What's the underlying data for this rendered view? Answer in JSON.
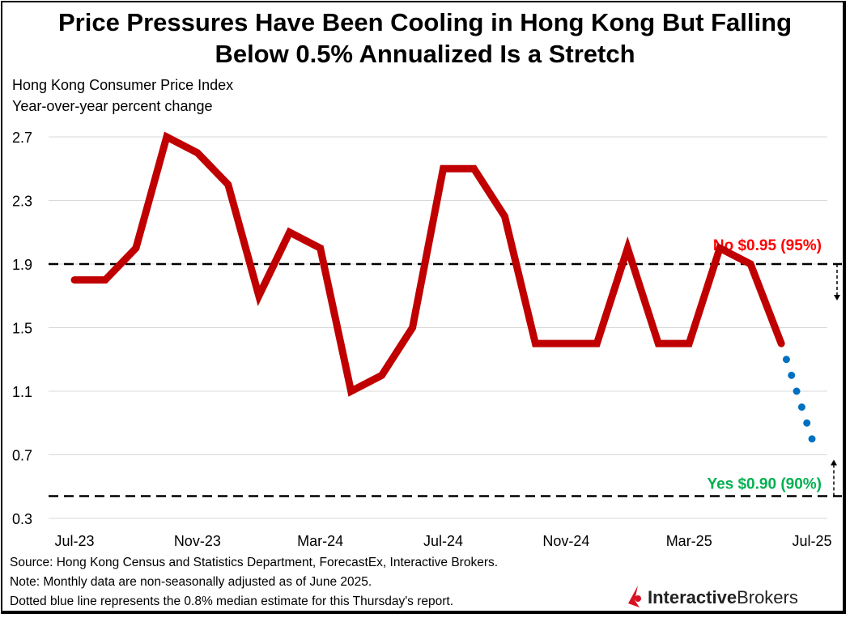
{
  "title_line1": "Price Pressures Have Been Cooling in Hong Kong But Falling",
  "title_line2": "Below 0.5% Annualized Is a Stretch",
  "subtitle_line1": "Hong Kong Consumer Price Index",
  "subtitle_line2": "Year-over-year percent change",
  "footer": {
    "source": "Source: Hong Kong Census and Statistics Department, ForecastEx, Interactive Brokers.",
    "note": "Note: Monthly data are non-seasonally adjusted as of June 2025.",
    "dotted": "Dotted blue line represents the 0.8% median estimate for this Thursday's report."
  },
  "logo": {
    "part1": "Interactive",
    "part2": "Brokers"
  },
  "chart_data": {
    "type": "line",
    "ylim": [
      0.3,
      2.7
    ],
    "yticks": [
      "2.7",
      "2.3",
      "1.9",
      "1.5",
      "1.1",
      "0.7",
      "0.3"
    ],
    "xtick_labels": [
      "Jul-23",
      "Nov-23",
      "Mar-24",
      "Jul-24",
      "Nov-24",
      "Mar-25",
      "Jul-25"
    ],
    "grid": true,
    "x": [
      "Jul-23",
      "Aug-23",
      "Sep-23",
      "Oct-23",
      "Nov-23",
      "Dec-23",
      "Jan-24",
      "Feb-24",
      "Mar-24",
      "Apr-24",
      "May-24",
      "Jun-24",
      "Jul-24",
      "Aug-24",
      "Sep-24",
      "Oct-24",
      "Nov-24",
      "Dec-24",
      "Jan-25",
      "Feb-25",
      "Mar-25",
      "Apr-25",
      "May-25",
      "Jun-25"
    ],
    "series": [
      {
        "values": [
          1.8,
          1.8,
          2.0,
          2.7,
          2.6,
          2.4,
          1.7,
          2.1,
          2.0,
          1.1,
          1.2,
          1.5,
          2.5,
          2.5,
          2.2,
          1.4,
          1.4,
          1.4,
          2.0,
          1.4,
          1.4,
          2.0,
          1.9,
          1.4
        ],
        "color": "#c00000"
      },
      {
        "x": [
          "Jun-25",
          "Jul-25"
        ],
        "values": [
          1.4,
          0.8
        ],
        "color": "#0070c0",
        "style": "dotted"
      }
    ],
    "reference_lines": [
      {
        "value": 1.9,
        "label": "No $0.95 (95%)",
        "color": "#ff0000"
      },
      {
        "value": 0.44,
        "label": "Yes $0.90 (90%)",
        "color": "#00b050"
      }
    ]
  }
}
